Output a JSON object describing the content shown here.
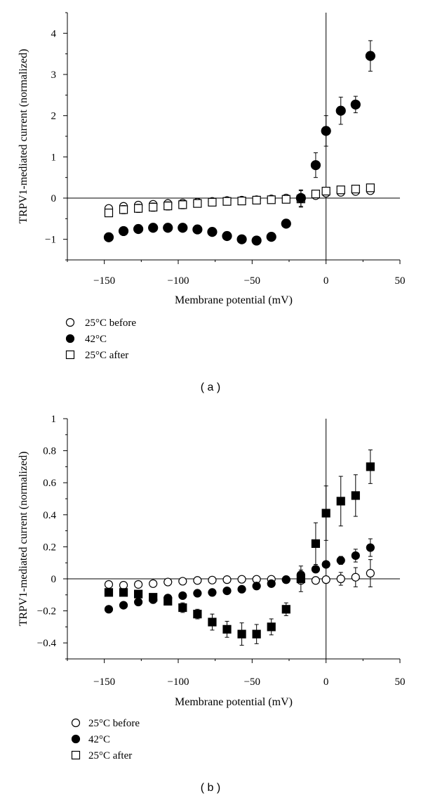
{
  "chart_data": [
    {
      "type": "scatter",
      "panel_label": "( a )",
      "xlabel": "Membrane potential (mV)",
      "ylabel": "TRPV1-mediated current (normalized)",
      "xlim": [
        -175,
        50
      ],
      "ylim": [
        -1.5,
        4.5
      ],
      "xticks": [
        -150,
        -100,
        -50,
        0,
        50
      ],
      "xtick_labels": [
        "−150",
        "−100",
        "−50",
        "0",
        "50"
      ],
      "yticks": [
        -1,
        0,
        1,
        2,
        3,
        4
      ],
      "ytick_labels": [
        "−1",
        "0",
        "1",
        "2",
        "3",
        "4"
      ],
      "reference_lines": {
        "x": 0,
        "y": 0
      },
      "x": [
        -147,
        -137,
        -127,
        -117,
        -107,
        -97,
        -87,
        -77,
        -67,
        -57,
        -47,
        -37,
        -27,
        -17,
        -7,
        0,
        10,
        20,
        30
      ],
      "series": [
        {
          "name": "25°C before",
          "marker": "circle-open",
          "values": [
            -0.25,
            -0.2,
            -0.17,
            -0.15,
            -0.13,
            -0.12,
            -0.1,
            -0.08,
            -0.06,
            -0.05,
            -0.04,
            -0.02,
            0.0,
            0.02,
            0.06,
            0.12,
            0.14,
            0.16,
            0.18
          ],
          "errors": [
            0.05,
            0.08,
            0.08,
            0.08,
            0.08,
            0.07,
            0.06,
            0.06,
            0.06,
            0.05,
            0.05,
            0.05,
            0.05,
            0.05,
            0.05,
            0.05,
            0.05,
            0.05,
            0.05
          ]
        },
        {
          "name": "42°C",
          "marker": "circle-filled",
          "values": [
            -0.95,
            -0.8,
            -0.75,
            -0.72,
            -0.72,
            -0.72,
            -0.76,
            -0.82,
            -0.92,
            -1.0,
            -1.03,
            -0.94,
            -0.62,
            0.0,
            0.8,
            1.63,
            2.12,
            2.27,
            3.45
          ],
          "errors": [
            0.03,
            0.03,
            0.03,
            0.03,
            0.03,
            0.03,
            0.03,
            0.03,
            0.03,
            0.03,
            0.03,
            0.03,
            0.08,
            0.2,
            0.3,
            0.37,
            0.33,
            0.2,
            0.37
          ]
        },
        {
          "name": "25°C after",
          "marker": "square-open",
          "values": [
            -0.36,
            -0.28,
            -0.25,
            -0.22,
            -0.19,
            -0.16,
            -0.13,
            -0.1,
            -0.08,
            -0.07,
            -0.05,
            -0.04,
            -0.03,
            -0.02,
            0.1,
            0.17,
            0.2,
            0.22,
            0.25
          ],
          "errors": [
            0.08,
            0.1,
            0.1,
            0.1,
            0.1,
            0.1,
            0.08,
            0.08,
            0.07,
            0.07,
            0.06,
            0.06,
            0.06,
            0.2,
            0.07,
            0.06,
            0.06,
            0.06,
            0.06
          ]
        }
      ],
      "legend": [
        "25°C before",
        "42°C",
        "25°C after"
      ],
      "legend_placement": "below"
    },
    {
      "type": "scatter",
      "panel_label": "( b )",
      "xlabel": "Membrane potential (mV)",
      "ylabel": "TRPV1-mediated current (normalized)",
      "xlim": [
        -175,
        50
      ],
      "ylim": [
        -0.5,
        1.0
      ],
      "xticks": [
        -150,
        -100,
        -50,
        0,
        50
      ],
      "xtick_labels": [
        "−150",
        "−100",
        "−50",
        "0",
        "50"
      ],
      "yticks": [
        -0.4,
        -0.2,
        0,
        0.2,
        0.4,
        0.6,
        0.8,
        1
      ],
      "ytick_labels": [
        "−0.4",
        "−0.2",
        "0",
        "0.2",
        "0.4",
        "0.6",
        "0.8",
        "1"
      ],
      "reference_lines": {
        "x": 0,
        "y": 0
      },
      "x": [
        -147,
        -137,
        -127,
        -117,
        -107,
        -97,
        -87,
        -77,
        -67,
        -57,
        -47,
        -37,
        -27,
        -17,
        -7,
        0,
        10,
        20,
        30
      ],
      "series": [
        {
          "name": "25°C before",
          "marker": "circle-open",
          "values": [
            -0.035,
            -0.04,
            -0.035,
            -0.03,
            -0.02,
            -0.015,
            -0.01,
            -0.008,
            -0.005,
            -0.003,
            -0.003,
            -0.003,
            -0.005,
            -0.01,
            -0.01,
            -0.005,
            0.0,
            0.01,
            0.035
          ],
          "errors": [
            0.01,
            0.01,
            0.015,
            0.015,
            0.015,
            0.01,
            0.01,
            0.01,
            0.01,
            0.01,
            0.01,
            0.01,
            0.01,
            0.01,
            0.01,
            0.01,
            0.04,
            0.06,
            0.085
          ]
        },
        {
          "name": "42°C",
          "marker": "circle-filled",
          "values": [
            -0.19,
            -0.165,
            -0.145,
            -0.13,
            -0.12,
            -0.105,
            -0.09,
            -0.085,
            -0.075,
            -0.065,
            -0.045,
            -0.03,
            -0.005,
            0.025,
            0.06,
            0.09,
            0.115,
            0.145,
            0.195
          ],
          "errors": [
            0.015,
            0.01,
            0.01,
            0.01,
            0.01,
            0.01,
            0.01,
            0.01,
            0.01,
            0.01,
            0.01,
            0.01,
            0.01,
            0.03,
            0.02,
            0.02,
            0.025,
            0.04,
            0.055
          ]
        },
        {
          "name": "25°C after",
          "marker": "square-filled",
          "values": [
            -0.085,
            -0.085,
            -0.095,
            -0.115,
            -0.14,
            -0.18,
            -0.22,
            -0.27,
            -0.315,
            -0.345,
            -0.345,
            -0.3,
            -0.19,
            0.0,
            0.22,
            0.41,
            0.485,
            0.52,
            0.7
          ],
          "errors": [
            0.02,
            0.02,
            0.02,
            0.02,
            0.02,
            0.03,
            0.03,
            0.05,
            0.05,
            0.07,
            0.06,
            0.05,
            0.04,
            0.08,
            0.13,
            0.17,
            0.155,
            0.13,
            0.105
          ]
        }
      ],
      "legend": [
        "25°C before",
        "42°C",
        "25°C after"
      ],
      "legend_placement": "below"
    }
  ]
}
